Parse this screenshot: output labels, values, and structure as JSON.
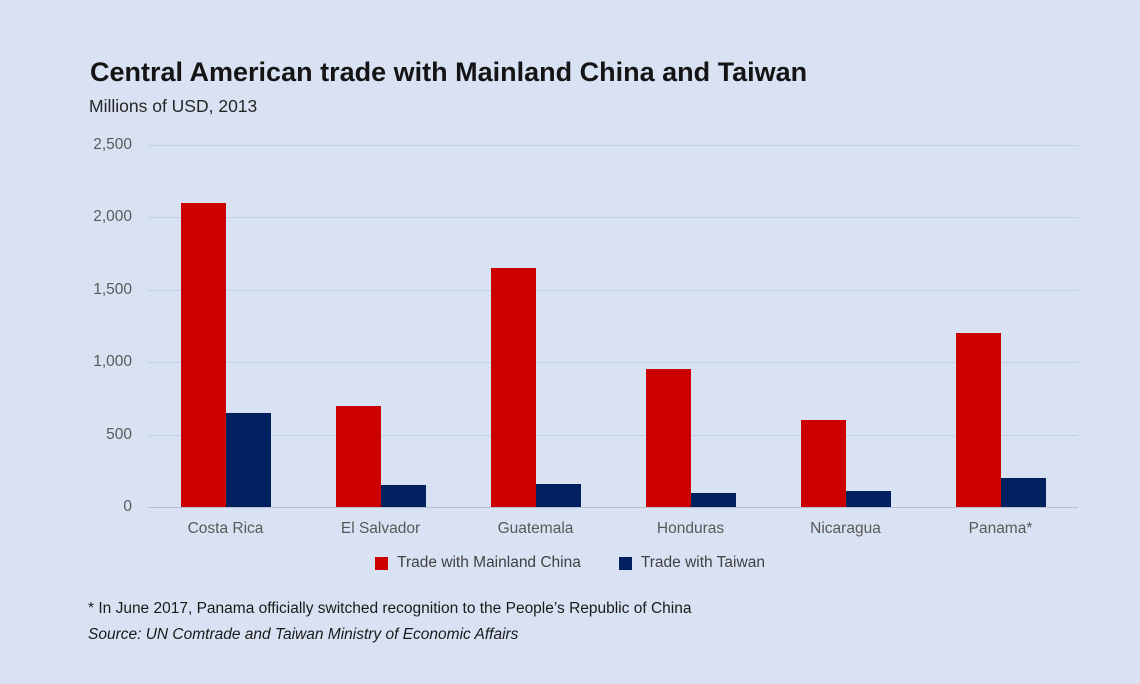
{
  "chart_data": {
    "type": "bar",
    "title": "Central American trade with Mainland China and Taiwan",
    "subtitle": "Millions of USD, 2013",
    "categories": [
      "Costa Rica",
      "El Salvador",
      "Guatemala",
      "Honduras",
      "Nicaragua",
      "Panama*"
    ],
    "series": [
      {
        "name": "Trade with Mainland China",
        "color": "#CC0000",
        "values": [
          2100,
          700,
          1650,
          950,
          600,
          1200
        ]
      },
      {
        "name": "Trade with Taiwan",
        "color": "#002060",
        "values": [
          650,
          150,
          160,
          100,
          110,
          200
        ]
      }
    ],
    "ylim": [
      0,
      2500
    ],
    "ytick_interval": 500,
    "ytick_labels": [
      "0",
      "500",
      "1,000",
      "1,500",
      "2,000",
      "2,500"
    ],
    "grid": true,
    "legend_position": "bottom"
  },
  "footnotes": {
    "line1": "* In June 2017, Panama officially switched recognition to the People’s Republic of China",
    "line2": "Source: UN Comtrade and Taiwan Ministry of Economic Affairs"
  },
  "colors": {
    "background": "#D9E2F3",
    "mainland_china_red": "#CC0000",
    "taiwan_navy": "#002060",
    "gridline": "#BCD3EE",
    "axis_line": "#B7BFD0",
    "axis_text": "#595959",
    "title_text": "#141414",
    "legend_text": "#404040"
  }
}
